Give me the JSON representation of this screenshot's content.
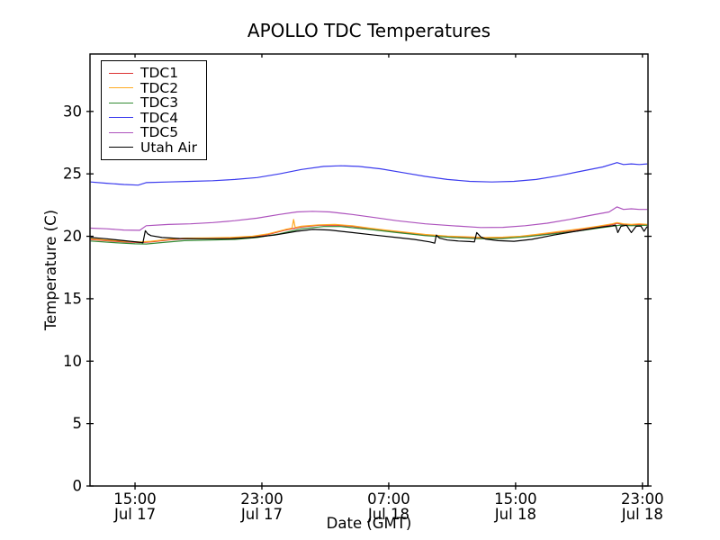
{
  "figure": {
    "background": "#ffffff",
    "axis_color": "#000000"
  },
  "chart_data": {
    "type": "line",
    "title": "APOLLO TDC Temperatures",
    "xlabel": "Date (GMT)",
    "ylabel": "Temperature (C)",
    "grid": false,
    "legend_position": "upper-left",
    "x_unit": "hours since Jul 17 00:00 GMT",
    "x_range": [
      12.16,
      47.35
    ],
    "ylim": [
      0,
      34.6
    ],
    "yticks": [
      0,
      5,
      10,
      15,
      20,
      25,
      30
    ],
    "xticks": [
      {
        "value": 15,
        "time": "15:00",
        "date": "Jul 17"
      },
      {
        "value": 23,
        "time": "23:00",
        "date": "Jul 17"
      },
      {
        "value": 31,
        "time": "07:00",
        "date": "Jul 18"
      },
      {
        "value": 39,
        "time": "15:00",
        "date": "Jul 18"
      },
      {
        "value": 47,
        "time": "23:00",
        "date": "Jul 18"
      }
    ],
    "series": [
      {
        "name": "TDC1",
        "color": "#dc3232",
        "points": [
          [
            12.2,
            19.75
          ],
          [
            13.2,
            19.65
          ],
          [
            14.3,
            19.55
          ],
          [
            15.3,
            19.5
          ],
          [
            16.0,
            19.55
          ],
          [
            17.1,
            19.7
          ],
          [
            18.1,
            19.8
          ],
          [
            19.6,
            19.82
          ],
          [
            21.0,
            19.85
          ],
          [
            22.4,
            19.95
          ],
          [
            23.4,
            20.15
          ],
          [
            24.5,
            20.5
          ],
          [
            25.5,
            20.75
          ],
          [
            26.6,
            20.88
          ],
          [
            27.6,
            20.9
          ],
          [
            28.7,
            20.8
          ],
          [
            29.8,
            20.6
          ],
          [
            30.8,
            20.45
          ],
          [
            31.9,
            20.3
          ],
          [
            33.3,
            20.1
          ],
          [
            34.7,
            19.98
          ],
          [
            36.1,
            19.9
          ],
          [
            37.1,
            19.85
          ],
          [
            38.2,
            19.88
          ],
          [
            39.3,
            19.95
          ],
          [
            40.3,
            20.1
          ],
          [
            41.7,
            20.32
          ],
          [
            43.1,
            20.55
          ],
          [
            44.2,
            20.75
          ],
          [
            45.1,
            20.95
          ],
          [
            45.4,
            21.05
          ],
          [
            45.8,
            20.95
          ],
          [
            46.3,
            20.9
          ],
          [
            46.8,
            20.95
          ],
          [
            47.3,
            20.9
          ]
        ]
      },
      {
        "name": "TDC2",
        "color": "#ffaa22",
        "points": [
          [
            12.2,
            19.8
          ],
          [
            13.2,
            19.7
          ],
          [
            14.3,
            19.6
          ],
          [
            15.3,
            19.55
          ],
          [
            16.0,
            19.6
          ],
          [
            17.1,
            19.75
          ],
          [
            18.1,
            19.85
          ],
          [
            19.6,
            19.87
          ],
          [
            21.0,
            19.9
          ],
          [
            22.4,
            20.0
          ],
          [
            23.4,
            20.2
          ],
          [
            24.5,
            20.55
          ],
          [
            24.9,
            20.65
          ],
          [
            25.0,
            21.35
          ],
          [
            25.1,
            20.7
          ],
          [
            25.5,
            20.8
          ],
          [
            26.6,
            20.92
          ],
          [
            27.6,
            20.95
          ],
          [
            28.7,
            20.85
          ],
          [
            29.8,
            20.65
          ],
          [
            30.8,
            20.5
          ],
          [
            31.9,
            20.35
          ],
          [
            33.3,
            20.15
          ],
          [
            34.7,
            20.02
          ],
          [
            36.1,
            19.95
          ],
          [
            37.1,
            19.9
          ],
          [
            38.2,
            19.93
          ],
          [
            39.3,
            20.0
          ],
          [
            40.3,
            20.15
          ],
          [
            41.7,
            20.37
          ],
          [
            43.1,
            20.6
          ],
          [
            44.2,
            20.8
          ],
          [
            45.1,
            21.0
          ],
          [
            45.4,
            21.1
          ],
          [
            45.8,
            21.0
          ],
          [
            46.3,
            20.95
          ],
          [
            46.8,
            21.0
          ],
          [
            47.3,
            20.95
          ]
        ]
      },
      {
        "name": "TDC3",
        "color": "#338a33",
        "points": [
          [
            12.2,
            19.62
          ],
          [
            13.6,
            19.5
          ],
          [
            15.0,
            19.4
          ],
          [
            15.7,
            19.38
          ],
          [
            16.7,
            19.5
          ],
          [
            18.1,
            19.65
          ],
          [
            19.9,
            19.7
          ],
          [
            21.3,
            19.75
          ],
          [
            22.7,
            19.9
          ],
          [
            24.1,
            20.2
          ],
          [
            25.5,
            20.6
          ],
          [
            26.9,
            20.78
          ],
          [
            28.0,
            20.78
          ],
          [
            29.8,
            20.55
          ],
          [
            31.5,
            20.3
          ],
          [
            33.3,
            20.05
          ],
          [
            35.0,
            19.9
          ],
          [
            36.8,
            19.8
          ],
          [
            38.2,
            19.82
          ],
          [
            39.6,
            19.95
          ],
          [
            41.4,
            20.2
          ],
          [
            43.1,
            20.45
          ],
          [
            44.5,
            20.7
          ],
          [
            45.6,
            20.9
          ],
          [
            46.3,
            20.85
          ],
          [
            47.3,
            20.88
          ]
        ]
      },
      {
        "name": "TDC4",
        "color": "#3b3bee",
        "points": [
          [
            12.2,
            24.35
          ],
          [
            13.2,
            24.25
          ],
          [
            14.3,
            24.15
          ],
          [
            15.2,
            24.1
          ],
          [
            15.7,
            24.3
          ],
          [
            17.1,
            24.35
          ],
          [
            18.5,
            24.4
          ],
          [
            19.9,
            24.45
          ],
          [
            21.3,
            24.55
          ],
          [
            22.7,
            24.7
          ],
          [
            24.1,
            25.0
          ],
          [
            25.5,
            25.35
          ],
          [
            26.9,
            25.6
          ],
          [
            28.0,
            25.65
          ],
          [
            29.1,
            25.6
          ],
          [
            30.5,
            25.4
          ],
          [
            31.9,
            25.1
          ],
          [
            33.3,
            24.8
          ],
          [
            34.7,
            24.55
          ],
          [
            36.1,
            24.4
          ],
          [
            37.5,
            24.35
          ],
          [
            38.9,
            24.4
          ],
          [
            40.3,
            24.55
          ],
          [
            41.7,
            24.85
          ],
          [
            43.1,
            25.2
          ],
          [
            44.5,
            25.55
          ],
          [
            45.4,
            25.9
          ],
          [
            45.8,
            25.75
          ],
          [
            46.3,
            25.8
          ],
          [
            46.8,
            25.75
          ],
          [
            47.3,
            25.8
          ]
        ]
      },
      {
        "name": "TDC5",
        "color": "#ad52bd",
        "points": [
          [
            12.2,
            20.65
          ],
          [
            13.2,
            20.6
          ],
          [
            14.3,
            20.5
          ],
          [
            15.3,
            20.48
          ],
          [
            15.7,
            20.85
          ],
          [
            17.1,
            20.95
          ],
          [
            18.5,
            21.0
          ],
          [
            19.9,
            21.1
          ],
          [
            21.3,
            21.25
          ],
          [
            22.7,
            21.45
          ],
          [
            24.1,
            21.75
          ],
          [
            25.2,
            21.95
          ],
          [
            26.2,
            22.0
          ],
          [
            27.3,
            21.95
          ],
          [
            28.7,
            21.75
          ],
          [
            30.1,
            21.5
          ],
          [
            31.5,
            21.25
          ],
          [
            33.3,
            21.0
          ],
          [
            35.0,
            20.85
          ],
          [
            36.8,
            20.7
          ],
          [
            38.2,
            20.72
          ],
          [
            39.6,
            20.85
          ],
          [
            41.0,
            21.05
          ],
          [
            42.4,
            21.35
          ],
          [
            43.8,
            21.7
          ],
          [
            44.9,
            21.95
          ],
          [
            45.4,
            22.35
          ],
          [
            45.8,
            22.15
          ],
          [
            46.3,
            22.2
          ],
          [
            46.8,
            22.15
          ],
          [
            47.3,
            22.15
          ]
        ]
      },
      {
        "name": "Utah Air",
        "color": "#000000",
        "points": [
          [
            12.2,
            19.9
          ],
          [
            13.2,
            19.8
          ],
          [
            14.3,
            19.65
          ],
          [
            15.3,
            19.52
          ],
          [
            15.5,
            19.48
          ],
          [
            15.65,
            20.45
          ],
          [
            15.8,
            20.2
          ],
          [
            16.0,
            20.05
          ],
          [
            16.7,
            19.9
          ],
          [
            17.8,
            19.82
          ],
          [
            19.2,
            19.8
          ],
          [
            21.0,
            19.8
          ],
          [
            22.4,
            19.9
          ],
          [
            23.8,
            20.1
          ],
          [
            25.2,
            20.4
          ],
          [
            26.2,
            20.55
          ],
          [
            27.3,
            20.5
          ],
          [
            28.7,
            20.3
          ],
          [
            30.1,
            20.1
          ],
          [
            31.5,
            19.9
          ],
          [
            32.6,
            19.75
          ],
          [
            33.6,
            19.55
          ],
          [
            33.9,
            19.45
          ],
          [
            34.0,
            20.1
          ],
          [
            34.2,
            19.85
          ],
          [
            34.7,
            19.7
          ],
          [
            35.4,
            19.62
          ],
          [
            36.1,
            19.58
          ],
          [
            36.4,
            19.55
          ],
          [
            36.55,
            20.3
          ],
          [
            36.8,
            19.95
          ],
          [
            37.1,
            19.78
          ],
          [
            37.9,
            19.65
          ],
          [
            38.9,
            19.6
          ],
          [
            40.0,
            19.75
          ],
          [
            41.4,
            20.1
          ],
          [
            42.8,
            20.4
          ],
          [
            44.2,
            20.7
          ],
          [
            45.1,
            20.85
          ],
          [
            45.3,
            20.9
          ],
          [
            45.45,
            20.3
          ],
          [
            45.65,
            20.8
          ],
          [
            46.0,
            20.88
          ],
          [
            46.3,
            20.3
          ],
          [
            46.6,
            20.8
          ],
          [
            46.9,
            20.82
          ],
          [
            47.1,
            20.4
          ],
          [
            47.3,
            20.78
          ]
        ]
      }
    ]
  }
}
